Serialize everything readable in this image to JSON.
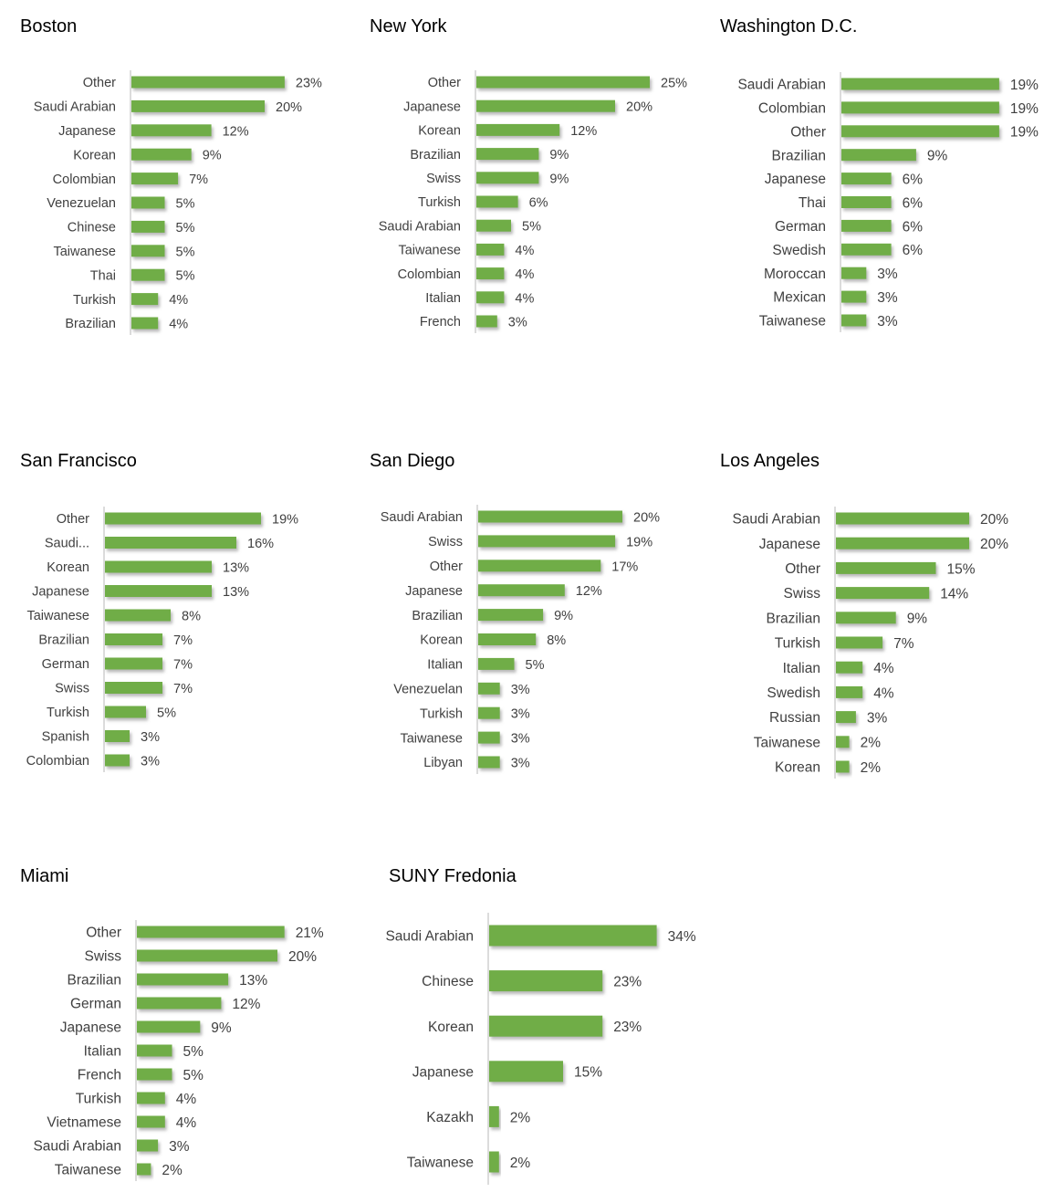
{
  "bar_color": "#70ad47",
  "bar_shadow_color": "#9a9a9a",
  "axis_color": "#d0d0d0",
  "text_color": "#404040",
  "title_color": "#000000",
  "chart_data": [
    {
      "type": "bar",
      "orientation": "horizontal",
      "title": "Boston",
      "categories": [
        "Other",
        "Saudi Arabian",
        "Japanese",
        "Korean",
        "Colombian",
        "Venezuelan",
        "Chinese",
        "Taiwanese",
        "Thai",
        "Turkish",
        "Brazilian"
      ],
      "values": [
        23,
        20,
        12,
        9,
        7,
        5,
        5,
        5,
        5,
        4,
        4
      ],
      "labels": [
        "23%",
        "20%",
        "12%",
        "9%",
        "7%",
        "5%",
        "5%",
        "5%",
        "5%",
        "4%",
        "4%"
      ]
    },
    {
      "type": "bar",
      "orientation": "horizontal",
      "title": "New York",
      "categories": [
        "Other",
        "Japanese",
        "Korean",
        "Brazilian",
        "Swiss",
        "Turkish",
        "Saudi Arabian",
        "Taiwanese",
        "Colombian",
        "Italian",
        "French"
      ],
      "values": [
        25,
        20,
        12,
        9,
        9,
        6,
        5,
        4,
        4,
        4,
        3
      ],
      "labels": [
        "25%",
        "20%",
        "12%",
        "9%",
        "9%",
        "6%",
        "5%",
        "4%",
        "4%",
        "4%",
        "3%"
      ]
    },
    {
      "type": "bar",
      "orientation": "horizontal",
      "title": "Washington D.C.",
      "categories": [
        "Saudi Arabian",
        "Colombian",
        "Other",
        "Brazilian",
        "Japanese",
        "Thai",
        "German",
        "Swedish",
        "Moroccan",
        "Mexican",
        "Taiwanese"
      ],
      "values": [
        19,
        19,
        19,
        9,
        6,
        6,
        6,
        6,
        3,
        3,
        3
      ],
      "labels": [
        "19%",
        "19%",
        "19%",
        "9%",
        "6%",
        "6%",
        "6%",
        "6%",
        "3%",
        "3%",
        "3%"
      ]
    },
    {
      "type": "bar",
      "orientation": "horizontal",
      "title": "San Francisco",
      "categories": [
        "Other",
        "Saudi...",
        "Korean",
        "Japanese",
        "Taiwanese",
        "Brazilian",
        "German",
        "Swiss",
        "Turkish",
        "Spanish",
        "Colombian"
      ],
      "values": [
        19,
        16,
        13,
        13,
        8,
        7,
        7,
        7,
        5,
        3,
        3
      ],
      "labels": [
        "19%",
        "16%",
        "13%",
        "13%",
        "8%",
        "7%",
        "7%",
        "7%",
        "5%",
        "3%",
        "3%"
      ]
    },
    {
      "type": "bar",
      "orientation": "horizontal",
      "title": "San Diego",
      "categories": [
        "Saudi Arabian",
        "Swiss",
        "Other",
        "Japanese",
        "Brazilian",
        "Korean",
        "Italian",
        "Venezuelan",
        "Turkish",
        "Taiwanese",
        "Libyan"
      ],
      "values": [
        20,
        19,
        17,
        12,
        9,
        8,
        5,
        3,
        3,
        3,
        3
      ],
      "labels": [
        "20%",
        "19%",
        "17%",
        "12%",
        "9%",
        "8%",
        "5%",
        "3%",
        "3%",
        "3%",
        "3%"
      ]
    },
    {
      "type": "bar",
      "orientation": "horizontal",
      "title": "Los Angeles",
      "categories": [
        "Saudi Arabian",
        "Japanese",
        "Other",
        "Swiss",
        "Brazilian",
        "Turkish",
        "Italian",
        "Swedish",
        "Russian",
        "Taiwanese",
        "Korean"
      ],
      "values": [
        20,
        20,
        15,
        14,
        9,
        7,
        4,
        4,
        3,
        2,
        2
      ],
      "labels": [
        "20%",
        "20%",
        "15%",
        "14%",
        "9%",
        "7%",
        "4%",
        "4%",
        "3%",
        "2%",
        "2%"
      ]
    },
    {
      "type": "bar",
      "orientation": "horizontal",
      "title": "Miami",
      "categories": [
        "Other",
        "Swiss",
        "Brazilian",
        "German",
        "Japanese",
        "Italian",
        "French",
        "Turkish",
        "Vietnamese",
        "Saudi Arabian",
        "Taiwanese"
      ],
      "values": [
        21,
        20,
        13,
        12,
        9,
        5,
        5,
        4,
        4,
        3,
        2
      ],
      "labels": [
        "21%",
        "20%",
        "13%",
        "12%",
        "9%",
        "5%",
        "5%",
        "4%",
        "4%",
        "3%",
        "2%"
      ]
    },
    {
      "type": "bar",
      "orientation": "horizontal",
      "title": "SUNY Fredonia",
      "categories": [
        "Saudi Arabian",
        "Chinese",
        "Korean",
        "Japanese",
        "Kazakh",
        "Taiwanese"
      ],
      "values": [
        34,
        23,
        23,
        15,
        2,
        2
      ],
      "labels": [
        "34%",
        "23%",
        "23%",
        "15%",
        "2%",
        "2%"
      ]
    }
  ]
}
